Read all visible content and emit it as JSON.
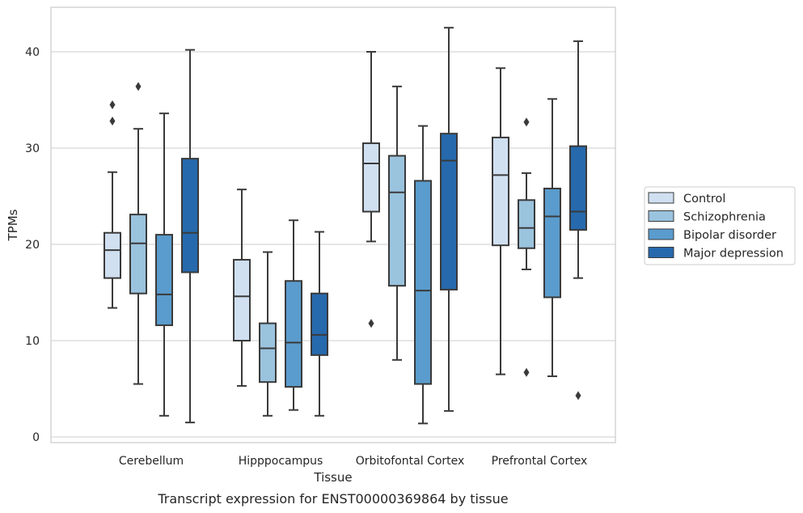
{
  "caption": "Transcript expression for ENST00000369864 by tissue",
  "chart_data": {
    "type": "box",
    "xlabel": "Tissue",
    "ylabel": "TPMs",
    "ylim": [
      -0.7,
      44.5
    ],
    "yticks": [
      0,
      10,
      20,
      30,
      40
    ],
    "grid": "horizontal",
    "legend_position": "right",
    "categories": [
      "Cerebellum",
      "Hipppocampus",
      "Orbitofontal Cortex",
      "Prefrontal Cortex"
    ],
    "series": [
      {
        "name": "Control",
        "color": "#d0e0f1",
        "boxes": [
          {
            "whislo": 13.4,
            "q1": 16.5,
            "med": 19.4,
            "q3": 21.2,
            "whishi": 27.5,
            "fliers": [
              32.8,
              34.5
            ]
          },
          {
            "whislo": 5.3,
            "q1": 10.0,
            "med": 14.6,
            "q3": 18.4,
            "whishi": 25.7,
            "fliers": []
          },
          {
            "whislo": 20.3,
            "q1": 23.4,
            "med": 28.4,
            "q3": 30.5,
            "whishi": 40.0,
            "fliers": [
              11.8
            ]
          },
          {
            "whislo": 6.5,
            "q1": 19.9,
            "med": 27.2,
            "q3": 31.1,
            "whishi": 38.3,
            "fliers": []
          }
        ]
      },
      {
        "name": "Schizophrenia",
        "color": "#9ac3de",
        "boxes": [
          {
            "whislo": 5.5,
            "q1": 14.9,
            "med": 20.1,
            "q3": 23.1,
            "whishi": 32.0,
            "fliers": [
              36.4
            ]
          },
          {
            "whislo": 2.2,
            "q1": 5.7,
            "med": 9.2,
            "q3": 11.8,
            "whishi": 19.2,
            "fliers": []
          },
          {
            "whislo": 8.0,
            "q1": 15.7,
            "med": 25.4,
            "q3": 29.2,
            "whishi": 36.4,
            "fliers": []
          },
          {
            "whislo": 17.4,
            "q1": 19.6,
            "med": 21.7,
            "q3": 24.6,
            "whishi": 27.4,
            "fliers": [
              6.7,
              32.7
            ]
          }
        ]
      },
      {
        "name": "Bipolar disorder",
        "color": "#5a9ccd",
        "boxes": [
          {
            "whislo": 2.2,
            "q1": 11.6,
            "med": 14.8,
            "q3": 21.0,
            "whishi": 33.6,
            "fliers": []
          },
          {
            "whislo": 2.8,
            "q1": 5.2,
            "med": 9.8,
            "q3": 16.2,
            "whishi": 22.5,
            "fliers": []
          },
          {
            "whislo": 1.4,
            "q1": 5.5,
            "med": 15.2,
            "q3": 26.6,
            "whishi": 32.3,
            "fliers": []
          },
          {
            "whislo": 6.3,
            "q1": 14.5,
            "med": 22.9,
            "q3": 25.8,
            "whishi": 35.1,
            "fliers": []
          }
        ]
      },
      {
        "name": "Major depression",
        "color": "#2669ad",
        "boxes": [
          {
            "whislo": 1.5,
            "q1": 17.1,
            "med": 21.2,
            "q3": 28.9,
            "whishi": 40.2,
            "fliers": []
          },
          {
            "whislo": 2.2,
            "q1": 8.5,
            "med": 10.6,
            "q3": 14.9,
            "whishi": 21.3,
            "fliers": []
          },
          {
            "whislo": 2.7,
            "q1": 15.3,
            "med": 28.7,
            "q3": 31.5,
            "whishi": 42.5,
            "fliers": []
          },
          {
            "whislo": 16.5,
            "q1": 21.5,
            "med": 23.4,
            "q3": 30.2,
            "whishi": 41.1,
            "fliers": [
              4.3
            ]
          }
        ]
      }
    ]
  }
}
